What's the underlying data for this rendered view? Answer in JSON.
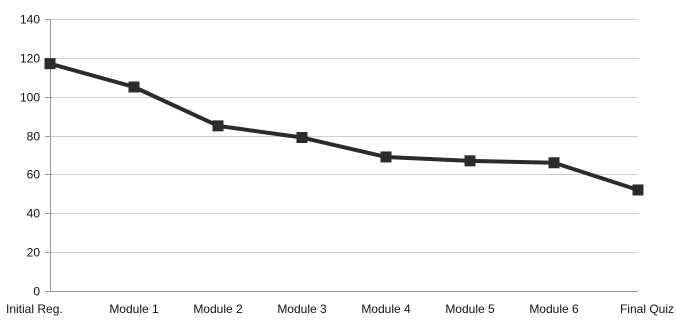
{
  "chart_data": {
    "type": "line",
    "title": "",
    "xlabel": "",
    "ylabel": "",
    "categories": [
      "Initial Reg.",
      "Module 1",
      "Module 2",
      "Module 3",
      "Module 4",
      "Module 5",
      "Module 6",
      "Final Quiz"
    ],
    "series": [
      {
        "values": [
          117,
          105,
          85,
          79,
          69,
          67,
          66,
          52
        ]
      }
    ],
    "ylim": [
      0,
      140
    ],
    "yticks": [
      0,
      20,
      40,
      60,
      80,
      100,
      120,
      140
    ],
    "grid": "horizontal",
    "legend": "none",
    "colors": {
      "line": "#2b2b2b",
      "marker": "#2b2b2b",
      "grid": "#cfcfcf",
      "axis": "#999999",
      "text": "#111111"
    }
  }
}
